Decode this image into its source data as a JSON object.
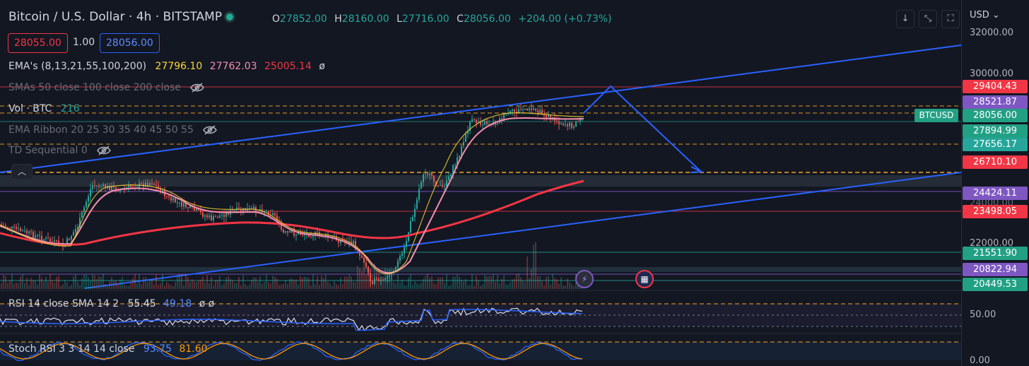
{
  "header": {
    "title": "Bitcoin / U.S. Dollar · 4h · BITSTAMP",
    "ohlc": [
      {
        "k": "O",
        "v": "27852.00"
      },
      {
        "k": "H",
        "v": "28160.00"
      },
      {
        "k": "L",
        "v": "27716.00"
      },
      {
        "k": "C",
        "v": "28056.00"
      }
    ],
    "change": "+204.00 (+0.73%)",
    "bid": "28055.00",
    "spread": "1.00",
    "ask": "28056.00"
  },
  "indicators": {
    "ema_label": "EMA's (8,13,21,55,100,200)",
    "ema_values": [
      "27796.10",
      "27762.03",
      "25005.14"
    ],
    "ema_symbol": "ø",
    "sma_label": "SMAs 50 close 100 close 200 close",
    "vol_label": "Vol · BTC",
    "vol_value": "216",
    "ribbon_label": "EMA Ribbon 20 25 30 35 40 45 50 55",
    "td_label": "TD Sequential 0",
    "rsi_label": "RSI 14 close SMA 14 2",
    "rsi_value": "55.45",
    "rsi_sma": "49.18",
    "rsi_symbols": "ø ø",
    "stoch_label": "Stoch RSI 3 3 14 14 close",
    "stoch_k": "93.75",
    "stoch_d": "81.60"
  },
  "axis": {
    "currency": "USD",
    "ticks": [
      "32000.00",
      "30000.00",
      "24000.00",
      "22000.00",
      "50.00",
      "0.00"
    ],
    "tags": [
      {
        "label": "29404.43",
        "color": "#f23645"
      },
      {
        "label": "28521.87",
        "color": "#7e57c2"
      },
      {
        "label": "28056.00",
        "color": "#22a084"
      },
      {
        "label": "27894.99",
        "color": "#22a084"
      },
      {
        "label": "27656.17",
        "color": "#26a69a"
      },
      {
        "label": "26710.10",
        "color": "#f23645"
      },
      {
        "label": "24424.11",
        "color": "#7e57c2"
      },
      {
        "label": "23498.05",
        "color": "#f23645"
      },
      {
        "label": "21551.90",
        "color": "#22a084"
      },
      {
        "label": "20822.94",
        "color": "#7e57c2"
      },
      {
        "label": "20449.53",
        "color": "#22a084"
      }
    ],
    "symbol_tag": "BTCUSD"
  },
  "toolbar": {
    "buttons": [
      "down-arrow-icon",
      "collapse-icon",
      "maximize-icon"
    ]
  },
  "colors": {
    "up": "#26a69a",
    "down": "#ef5350",
    "trendline": "#2962ff",
    "ema200": "#f23645",
    "ema_pink": "#f48fb1",
    "ema_yellow": "#fdd835",
    "bg": "#131722"
  }
}
